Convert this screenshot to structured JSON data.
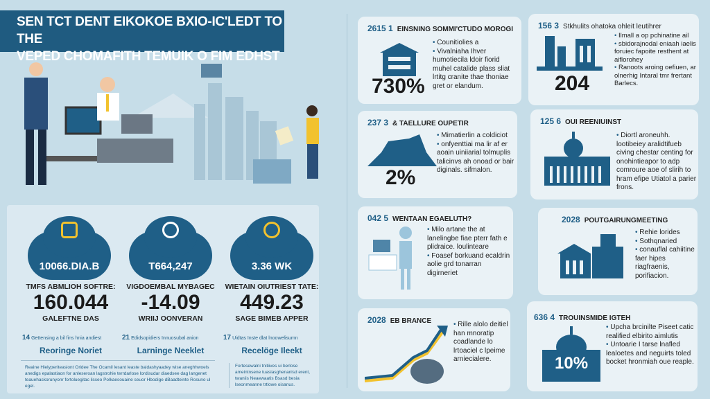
{
  "title": {
    "line1": "SEN TCT DENT EIKOKOE BXIO-IC'LEDT TO THE",
    "line2": "VEPED CHOMAFITH TEMUIK O FIM EDHST"
  },
  "colors": {
    "primary": "#1f5f87",
    "accent": "#f2c22e",
    "background": "#c6dde8"
  },
  "stats": [
    {
      "cloud_value": "10066.DIA.B",
      "icon": "document-icon",
      "label": "TMFS ABMLIOH SOFTRE:",
      "value": "160.044",
      "sub": "GALEFTNE DAS",
      "rank": "14",
      "rank_text": "Gettensing a bil fins hnia andiest",
      "rank_name": "Reoringe Noriet"
    },
    {
      "cloud_value": "T664,247",
      "icon": "briefcase-icon",
      "label": "VIGDOEMBAL MYBAGEC",
      "value": "-14.09",
      "sub": "WRIIJ OONVERAN",
      "rank": "21",
      "rank_text": "Edidsopidiers Innuosubal anion",
      "rank_name": "Larninge Neeklet"
    },
    {
      "cloud_value": "3.36 WK",
      "icon": "globe-icon",
      "label": "WIETAIN OIUTRIEST TATE:",
      "value": "449.23",
      "sub": "SAGE BIMEB APPER",
      "rank": "17",
      "rank_text": "Uidtas Inste dlat lnoowelisumn",
      "rank_name": "Recelöge Ileekt"
    }
  ],
  "paragraphs": {
    "left": "Reaine Hielyperiteasiont Oridee The Ocamil lesant leaste baidashyaadey wise aneghhwoels anedigs epalastiaon for anleseroan lagstrohie terrdarlose lordisudar diaedsee dag langenet teauehaskorunyonr fortoluegitac lisseo Polkaesouaine seuor Hbodige dBaadteinte Rosuno ul egel.",
    "right": "Fortesewalni tnitiives ui berlose ameintnsene tuasiasghenanisd erent, twaniis Neaewaatis Bsasd besia lseonmeanne trtlowe oisanus."
  },
  "cards": [
    {
      "code": "2615 1",
      "title": "EINSNING SOMMI'CTUDO MOROGI",
      "value": "730%",
      "bullets": [
        "Counitiolies a",
        "Vivalniaha Ihver humotiecila ldoir fiorid muhel catalide plass sliat lrtitg cranite thae thoniae gret or elandum."
      ]
    },
    {
      "code": "156 3",
      "title": "Stkhulits ohatoka ohleit leutihrer",
      "value": "204",
      "bullets": [
        "Ilmall a op pchinatine ail",
        "sbidorajnodal eniaah iaelis foruiec fapoite resthent at aiflorohey",
        "Ranoots aroing oefiuen, ar olnerhig Intaral tmr frertant Barlecs."
      ]
    },
    {
      "code": "237 3",
      "title": "& TAELLURE OUPETIR",
      "value": "2%",
      "bullets": [
        "Mimatierlin a coldiciot",
        "onfyenttiai ma lir af er aoain uiniiarial tolmuplis talicinvs ah onoad or bair diginals. sifmalon."
      ]
    },
    {
      "code": "125 6",
      "title": "OUI REENIUINST",
      "value": "",
      "bullets": [
        "Diortl aroneuhh. lootibeiey aralidtifueb civing chestar centing for onohintieapor to adp comroure aoe of slirih to hram efipe Utiatol a parier frons."
      ]
    },
    {
      "code": "042 5",
      "title": "WENTAAN EGAELUTH?",
      "value": "",
      "bullets": [
        "Milo artane the at lanelingbe fiae pterr fath e plidraice. loulinteare",
        "Foasef borkuand ecaldrin aolie grd tonarran digirneriet"
      ]
    },
    {
      "code": "2028",
      "title": "POUTGAIRUNGMEETING",
      "value": "",
      "bullets": [
        "Rehie lorides",
        "Sothqnaried",
        "conauflal cahiitine faer hipes riagfraenis, porifiacion."
      ]
    },
    {
      "code": "2028",
      "title": "EB BRANCE",
      "value": "",
      "bullets": [
        "Rille alolo deitiel han mnoratip coadlande lo lrtoaciel c lpeime arniecialere."
      ]
    },
    {
      "code": "636 4",
      "title": "TROUINSMIDE IGTEH",
      "value": "10%",
      "bullets": [
        "Upcha brcinilte Piseet catic realified elbirito aimlutis",
        "Untoarie I tarse lnafled lealoetes and neguirts toled bocket hronmiah oue reaple."
      ]
    }
  ]
}
